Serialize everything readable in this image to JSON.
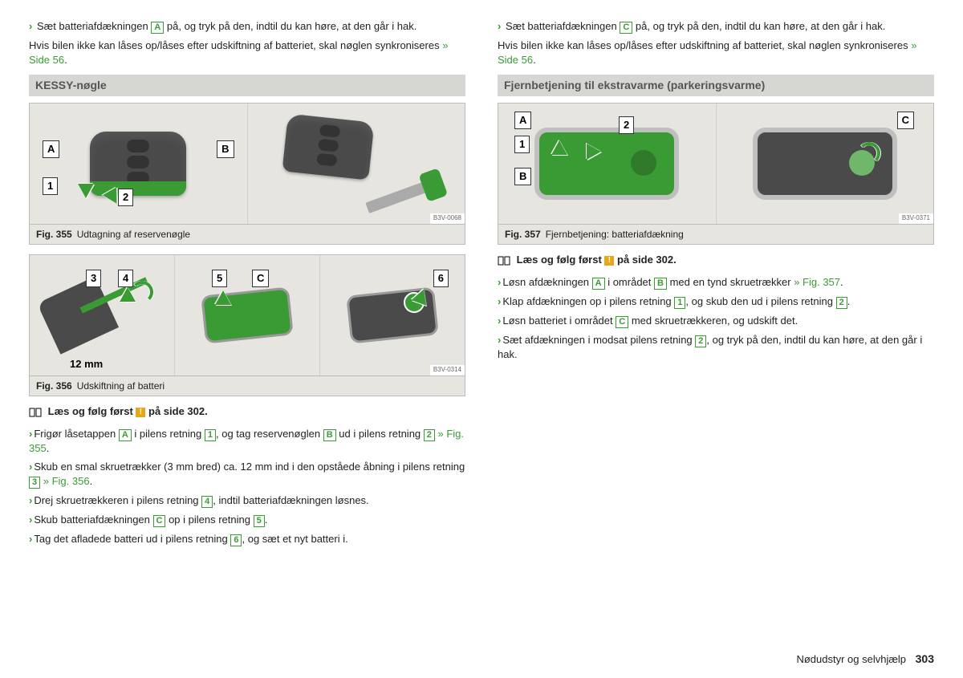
{
  "leftCol": {
    "topLine": {
      "prefix": "Sæt batteriafdækningen ",
      "ref": "A",
      "suffix": " på, og tryk på den, indtil du kan høre, at den går i hak."
    },
    "syncText": "Hvis bilen ikke kan låses op/låses efter udskiftning af batteriet, skal nøglen synkroniseres ",
    "syncLink": "» Side 56",
    "heading": "KESSY-nøgle",
    "fig355": {
      "code": "B3V-0068",
      "label": "Fig. 355",
      "caption": "Udtagning af reservenøgle"
    },
    "fig356": {
      "code": "B3V-0314",
      "label": "Fig. 356",
      "caption": "Udskiftning af batteri",
      "dim": "12 mm"
    },
    "readFirst": "Læs og følg først ",
    "readFirstPage": " på side 302.",
    "steps": [
      {
        "parts": [
          "Frigør låsetappen ",
          {
            "ref": "A"
          },
          " i pilens retning ",
          {
            "ref": "1"
          },
          ", og tag reservenøglen ",
          {
            "ref": "B"
          },
          " ud i pilens retning ",
          {
            "ref": "2"
          },
          " ",
          {
            "link": "» Fig. 355"
          },
          "."
        ]
      },
      {
        "parts": [
          "Skub en smal skruetrækker (3 mm bred) ca. 12 mm ind i den opståede åbning i pilens retning ",
          {
            "ref": "3"
          },
          " ",
          {
            "link": "» Fig. 356"
          },
          "."
        ]
      },
      {
        "parts": [
          "Drej skruetrækkeren i pilens retning ",
          {
            "ref": "4"
          },
          ", indtil batteriafdækningen løsnes."
        ]
      },
      {
        "parts": [
          "Skub batteriafdækningen ",
          {
            "ref": "C"
          },
          " op i pilens retning ",
          {
            "ref": "5"
          },
          "."
        ]
      },
      {
        "parts": [
          "Tag det afladede batteri ud i pilens retning ",
          {
            "ref": "6"
          },
          ", og sæt et nyt batteri i."
        ]
      }
    ]
  },
  "rightCol": {
    "topLine": {
      "prefix": "Sæt batteriafdækningen ",
      "ref": "C",
      "suffix": " på, og tryk på den, indtil du kan høre, at den går i hak."
    },
    "syncText": "Hvis bilen ikke kan låses op/låses efter udskiftning af batteriet, skal nøglen synkroniseres ",
    "syncLink": "» Side 56",
    "heading": "Fjernbetjening til ekstravarme (parkeringsvarme)",
    "fig357": {
      "code": "B3V-0371",
      "label": "Fig. 357",
      "caption": "Fjernbetjening: batteriafdækning"
    },
    "readFirst": "Læs og følg først ",
    "readFirstPage": " på side 302.",
    "steps": [
      {
        "parts": [
          "Løsn afdækningen ",
          {
            "ref": "A"
          },
          " i området ",
          {
            "ref": "B"
          },
          " med en tynd skruetrækker ",
          {
            "link": "» Fig. 357"
          },
          "."
        ]
      },
      {
        "parts": [
          "Klap afdækningen op i pilens retning ",
          {
            "ref": "1"
          },
          ", og skub den ud i pilens retning ",
          {
            "ref": "2"
          },
          "."
        ]
      },
      {
        "parts": [
          "Løsn batteriet i området ",
          {
            "ref": "C"
          },
          " med skruetrækkeren, og udskift det."
        ]
      },
      {
        "parts": [
          "Sæt afdækningen i modsat pilens retning ",
          {
            "ref": "2"
          },
          ", og tryk på den, indtil du kan høre, at den går i hak."
        ]
      }
    ]
  },
  "footer": {
    "section": "Nødudstyr og selvhjælp",
    "page": "303"
  }
}
